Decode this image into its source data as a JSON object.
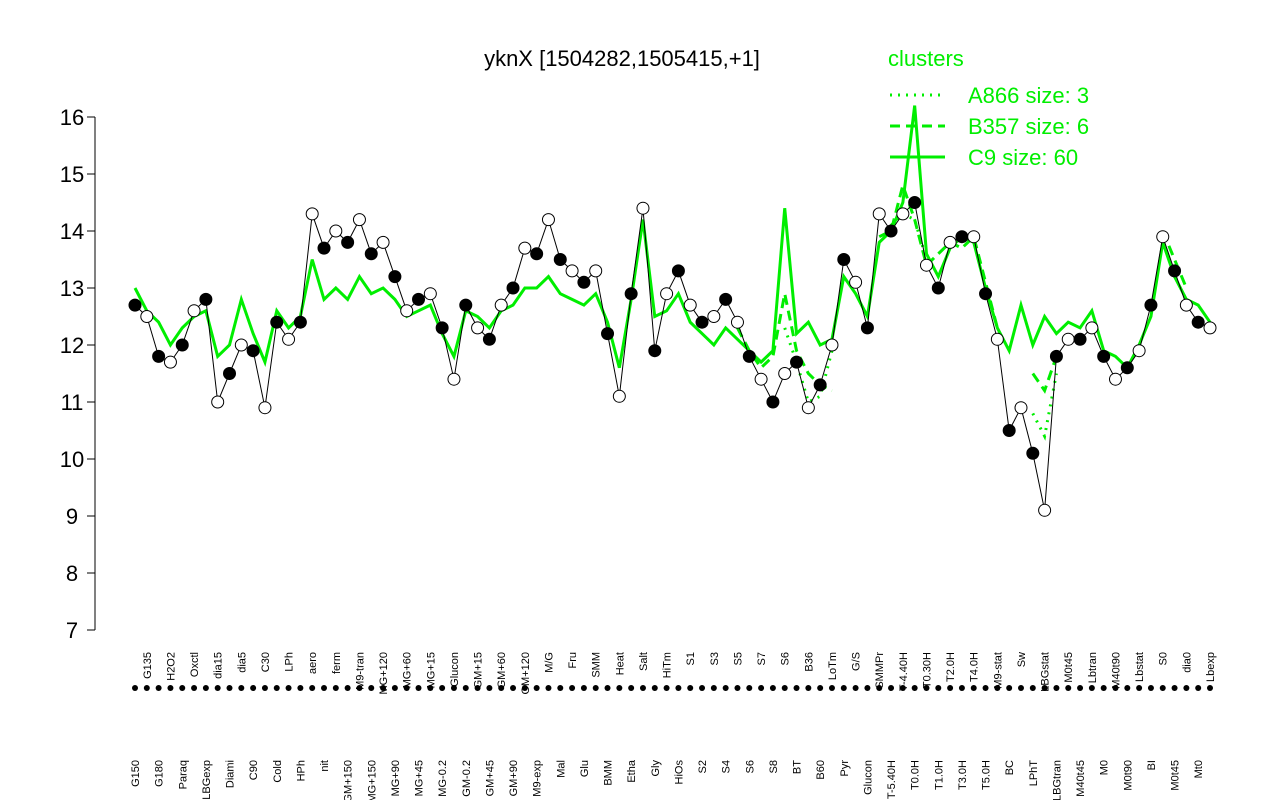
{
  "chart_data": {
    "type": "line",
    "title": "yknX [1504282,1505415,+1]",
    "categories": [
      "G150",
      "G135",
      "G180",
      "H2O2",
      "Paraq",
      "Oxctl",
      "LBGexp",
      "dia15",
      "Diami",
      "dia5",
      "C90",
      "C30",
      "Cold",
      "LPh",
      "HPh",
      "aero",
      "nit",
      "ferm",
      "GM+150",
      "M9-tran",
      "MG+150",
      "MG+120",
      "MG+90",
      "MG+60",
      "MG+45",
      "MG+15",
      "MG-0.2",
      "Glucon",
      "GM-0.2",
      "GM+15",
      "GM+45",
      "GM+60",
      "GM+90",
      "GM+120",
      "M9-exp",
      "M/G",
      "Mal",
      "Fru",
      "Glu",
      "SMM",
      "BMM",
      "Heat",
      "Etha",
      "Salt",
      "Gly",
      "HiTm",
      "HiOs",
      "S1",
      "S2",
      "S3",
      "S4",
      "S5",
      "S6",
      "S7",
      "S8",
      "S6",
      "BT",
      "B36",
      "B60",
      "LoTm",
      "Pyr",
      "G/S",
      "Glucon",
      "SMMPr",
      "T-5.40H",
      "T-4.40H",
      "T0.0H",
      "T0.30H",
      "T1.0H",
      "T2.0H",
      "T3.0H",
      "T4.0H",
      "T5.0H",
      "M9-stat",
      "BC",
      "Sw",
      "LPhT",
      "LBGstat",
      "LBGtran",
      "M0t45",
      "M40t45",
      "Lbtran",
      "M0",
      "M40t90",
      "M0t90",
      "Lbstat",
      "BI",
      "S0",
      "M0t45",
      "dia0",
      "Mt0",
      "Lbexp"
    ],
    "values": [
      12.7,
      12.5,
      11.8,
      11.7,
      12.0,
      12.6,
      12.8,
      11.0,
      11.5,
      12.0,
      11.9,
      10.9,
      12.4,
      12.1,
      12.4,
      14.3,
      13.7,
      14.0,
      13.8,
      14.2,
      13.6,
      13.8,
      13.2,
      12.6,
      12.8,
      12.9,
      12.3,
      11.4,
      12.7,
      12.3,
      12.1,
      12.7,
      13.0,
      13.7,
      13.6,
      14.2,
      13.5,
      13.3,
      13.1,
      13.3,
      12.2,
      11.1,
      12.9,
      14.4,
      11.9,
      12.9,
      13.3,
      12.7,
      12.4,
      12.5,
      12.8,
      12.4,
      11.8,
      11.4,
      11.0,
      11.5,
      11.7,
      10.9,
      11.3,
      12.0,
      13.5,
      13.1,
      12.3,
      14.3,
      14.0,
      14.3,
      14.5,
      13.4,
      13.0,
      13.8,
      13.9,
      13.9,
      12.9,
      12.1,
      10.5,
      10.9,
      10.1,
      9.1,
      11.8,
      12.1,
      12.1,
      12.3,
      11.8,
      11.4,
      11.6,
      11.9,
      12.7,
      13.9,
      13.3,
      12.7,
      12.4,
      12.3
    ],
    "color": "#000000",
    "legend_title": "clusters",
    "series": [
      {
        "name": "A866 size: 3",
        "color": "#00ee00",
        "style": "dotted",
        "values": [
          null,
          null,
          null,
          null,
          null,
          null,
          null,
          null,
          null,
          null,
          null,
          null,
          null,
          null,
          null,
          null,
          null,
          null,
          null,
          null,
          null,
          null,
          null,
          null,
          null,
          null,
          null,
          null,
          null,
          null,
          null,
          null,
          null,
          null,
          null,
          null,
          null,
          null,
          null,
          null,
          null,
          null,
          null,
          null,
          null,
          null,
          null,
          null,
          null,
          null,
          null,
          null,
          null,
          null,
          null,
          12.3,
          11.7,
          11.0,
          11.1,
          11.9,
          null,
          null,
          null,
          null,
          14.1,
          14.3,
          14.2,
          13.5,
          null,
          null,
          null,
          null,
          null,
          null,
          null,
          null,
          10.8,
          10.4,
          11.5,
          null,
          null,
          null,
          null,
          null,
          null,
          null,
          null,
          null,
          null,
          null,
          null,
          null
        ]
      },
      {
        "name": "B357 size: 6",
        "color": "#00ee00",
        "style": "dashed",
        "values": [
          null,
          null,
          null,
          null,
          null,
          null,
          null,
          null,
          null,
          null,
          null,
          null,
          null,
          null,
          null,
          null,
          null,
          null,
          null,
          null,
          null,
          null,
          null,
          null,
          null,
          null,
          null,
          null,
          null,
          null,
          null,
          null,
          null,
          null,
          null,
          null,
          null,
          null,
          null,
          null,
          null,
          null,
          null,
          null,
          null,
          null,
          null,
          null,
          null,
          null,
          null,
          12.3,
          11.9,
          11.6,
          11.8,
          12.9,
          11.9,
          11.5,
          11.3,
          11.2,
          null,
          null,
          null,
          13.9,
          14.0,
          14.8,
          14.2,
          13.4,
          13.6,
          13.8,
          13.7,
          13.9,
          13.1,
          12.3,
          null,
          null,
          11.5,
          11.2,
          11.8,
          null,
          null,
          null,
          null,
          null,
          null,
          null,
          null,
          14.0,
          13.5,
          13.0,
          null,
          null
        ]
      },
      {
        "name": "C9 size: 60",
        "color": "#00ee00",
        "style": "solid",
        "values": [
          13.0,
          12.6,
          12.4,
          12.0,
          12.3,
          12.5,
          12.6,
          11.8,
          12.0,
          12.8,
          12.2,
          11.7,
          12.6,
          12.3,
          12.5,
          13.5,
          12.8,
          13.0,
          12.8,
          13.2,
          12.9,
          13.0,
          12.8,
          12.5,
          12.6,
          12.7,
          12.2,
          11.8,
          12.6,
          12.5,
          12.3,
          12.6,
          12.7,
          13.0,
          13.0,
          13.2,
          12.9,
          12.8,
          12.7,
          12.9,
          12.4,
          11.6,
          12.8,
          14.2,
          12.5,
          12.6,
          12.9,
          12.4,
          12.2,
          12.0,
          12.3,
          12.1,
          11.9,
          11.7,
          11.9,
          14.4,
          12.2,
          12.4,
          12.0,
          12.1,
          13.2,
          12.9,
          12.5,
          13.8,
          14.0,
          14.5,
          16.2,
          13.6,
          13.2,
          13.7,
          13.9,
          13.8,
          13.0,
          12.3,
          11.9,
          12.7,
          12.0,
          12.5,
          12.2,
          12.4,
          12.3,
          12.6,
          11.9,
          11.8,
          11.6,
          12.0,
          12.5,
          13.8,
          13.2,
          12.8,
          12.7,
          12.4
        ]
      }
    ],
    "ylim": [
      7,
      16
    ],
    "yticks": [
      7,
      8,
      9,
      10,
      11,
      12,
      13,
      14,
      15,
      16
    ]
  }
}
